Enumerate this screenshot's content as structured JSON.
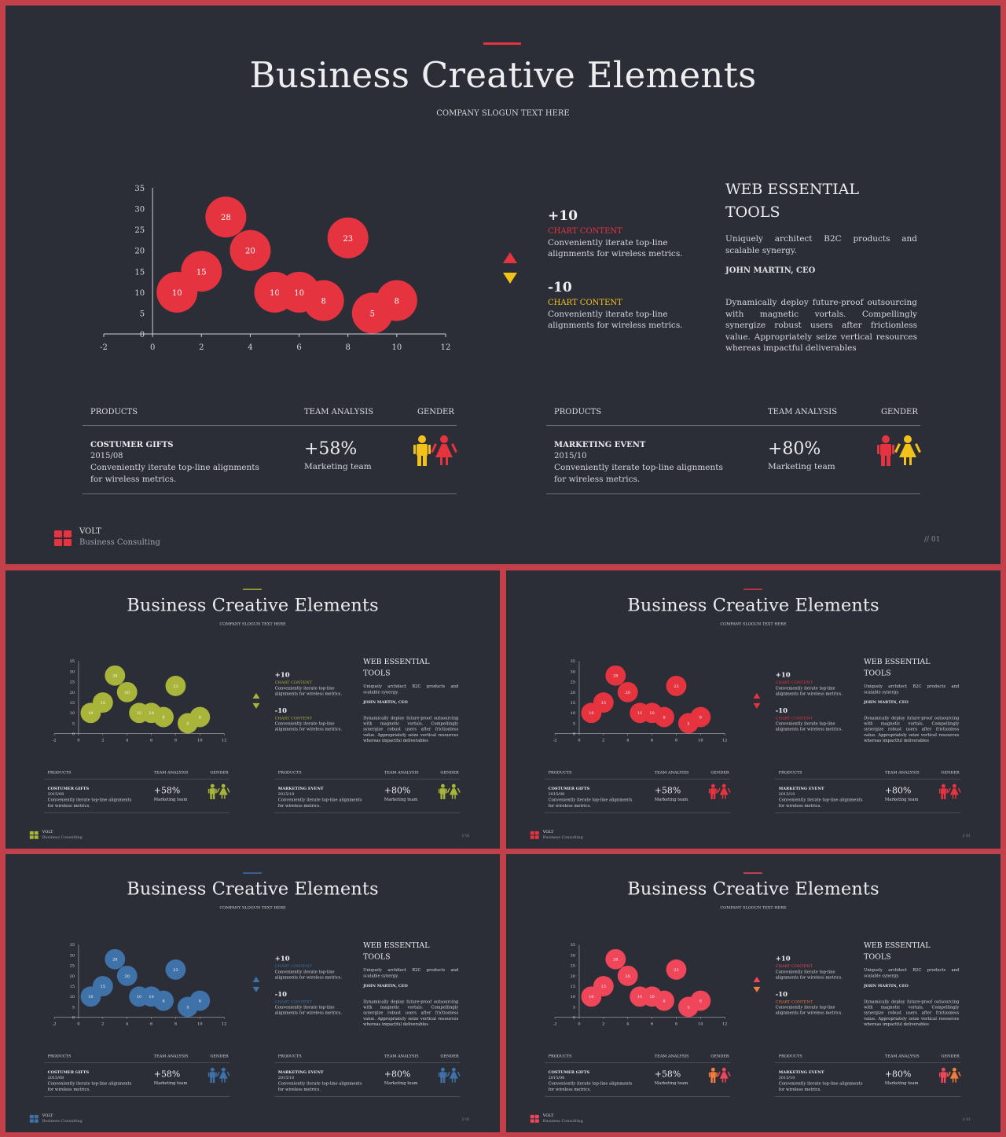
{
  "content": {
    "title": "Business Creative Elements",
    "subtitle": "COMPANY SLOGUN TEXT HERE",
    "stats": [
      {
        "value": "+10",
        "label": "CHART CONTENT",
        "description": "Conveniently iterate top-line alignments for wireless metrics."
      },
      {
        "value": "-10",
        "label": "CHART CONTENT",
        "description": "Conveniently iterate top-line alignments for wireless metrics."
      }
    ],
    "tools": {
      "heading": "WEB ESSENTIAL TOOLS",
      "intro": "Uniquely architect B2C products and scalable synergy.",
      "author": "JOHN MARTIN, CEO",
      "body": "Dynamically deploy future-proof outsourcing with magnetic vortals. Compellingly synergize robust users after frictionless value. Appropriately seize vertical resources whereas impactful deliverables"
    },
    "tables": [
      {
        "headers": [
          "PRODUCTS",
          "TEAM ANALYSIS",
          "GENDER"
        ],
        "product": "COSTUMER GIFTS",
        "date": "2015/08",
        "description": "Conveniently iterate top-line alignments for wireless metrics.",
        "percent": "+58%",
        "team": "Marketing team"
      },
      {
        "headers": [
          "PRODUCTS",
          "TEAM ANALYSIS",
          "GENDER"
        ],
        "product": "MARKETING EVENT",
        "date": "2015/10",
        "description": "Conveniently iterate top-line alignments for wireless metrics.",
        "percent": "+80%",
        "team": "Marketing team"
      }
    ],
    "brand": {
      "name": "VOLT",
      "tagline": "Business Consulting"
    },
    "page_number": "// 01"
  },
  "themes": [
    {
      "id": "main",
      "bubble": "#e5343f",
      "label1": "#e5343f",
      "label2": "#f2c21b",
      "arrow_up": "#e5343f",
      "arrow_down": "#f2c21b",
      "accent": "#e5343f",
      "g1": [
        "#f2c21b",
        "#e5343f"
      ],
      "g2": [
        "#e5343f",
        "#f2c21b"
      ],
      "logo": "#e5343f"
    },
    {
      "id": "green",
      "bubble": "#a9b53a",
      "label1": "#a9b53a",
      "label2": "#a9b53a",
      "arrow_up": "#a9b53a",
      "arrow_down": "#a9b53a",
      "accent": "#a9b53a",
      "g1": [
        "#a9b53a",
        "#a9b53a"
      ],
      "g2": [
        "#a9b53a",
        "#a9b53a"
      ],
      "logo": "#a9b53a"
    },
    {
      "id": "red",
      "bubble": "#e5343f",
      "label1": "#e5343f",
      "label2": "#e5343f",
      "arrow_up": "#e5343f",
      "arrow_down": "#e5343f",
      "accent": "#e5343f",
      "g1": [
        "#e5343f",
        "#e5343f"
      ],
      "g2": [
        "#e5343f",
        "#e5343f"
      ],
      "logo": "#e5343f"
    },
    {
      "id": "blue",
      "bubble": "#3f72a8",
      "label1": "#3f72a8",
      "label2": "#3f72a8",
      "arrow_up": "#3f72a8",
      "arrow_down": "#3f72a8",
      "accent": "#3f72a8",
      "g1": [
        "#3f72a8",
        "#3f72a8"
      ],
      "g2": [
        "#3f72a8",
        "#3f72a8"
      ],
      "logo": "#3f72a8"
    },
    {
      "id": "pink",
      "bubble": "#f0465a",
      "label1": "#f0465a",
      "label2": "#f47c3c",
      "arrow_up": "#f0465a",
      "arrow_down": "#f47c3c",
      "accent": "#f0465a",
      "g1": [
        "#f47c3c",
        "#f0465a"
      ],
      "g2": [
        "#f0465a",
        "#f47c3c"
      ],
      "logo": "#f0465a"
    }
  ],
  "chart_data": {
    "type": "scatter",
    "xlim": [
      -2,
      12
    ],
    "ylim": [
      0,
      35
    ],
    "x_ticks": [
      "-2",
      "0",
      "2",
      "4",
      "6",
      "8",
      "10",
      "12"
    ],
    "y_ticks": [
      "0",
      "5",
      "10",
      "15",
      "20",
      "25",
      "30",
      "35"
    ],
    "points": [
      {
        "x": 1,
        "y": 10,
        "label": "10"
      },
      {
        "x": 2,
        "y": 15,
        "label": "15"
      },
      {
        "x": 3,
        "y": 28,
        "label": "28"
      },
      {
        "x": 4,
        "y": 20,
        "label": "20"
      },
      {
        "x": 5,
        "y": 10,
        "label": "10"
      },
      {
        "x": 6,
        "y": 10,
        "label": "10"
      },
      {
        "x": 7,
        "y": 8,
        "label": "8"
      },
      {
        "x": 8,
        "y": 23,
        "label": "23"
      },
      {
        "x": 9,
        "y": 5,
        "label": "5"
      },
      {
        "x": 10,
        "y": 8,
        "label": "8"
      }
    ]
  }
}
